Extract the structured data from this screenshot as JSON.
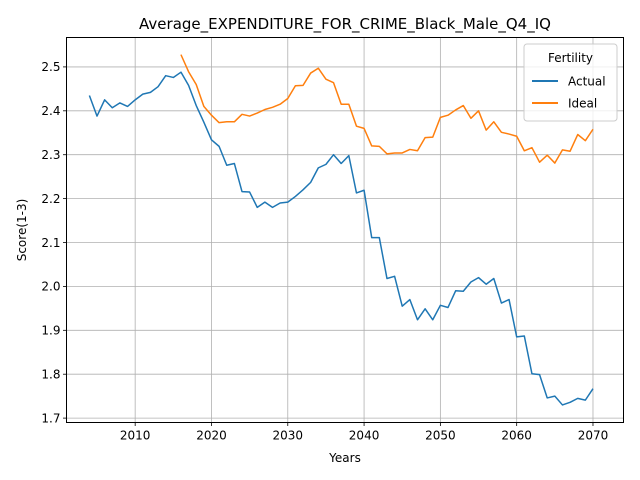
{
  "chart_data": {
    "type": "line",
    "title": "Average_EXPENDITURE_FOR_CRIME_Black_Male_Q4_IQ",
    "xlabel": "Years",
    "ylabel": "Score(1-3)",
    "xlim": [
      2001,
      2074
    ],
    "ylim": [
      1.69,
      2.567
    ],
    "xticks": [
      2010,
      2020,
      2030,
      2040,
      2050,
      2060,
      2070
    ],
    "yticks": [
      1.7,
      1.8,
      1.9,
      2.0,
      2.1,
      2.2,
      2.3,
      2.4,
      2.5
    ],
    "grid": true,
    "legend": {
      "title": "Fertility",
      "position": "top-right"
    },
    "series": [
      {
        "name": "Actual",
        "color": "#1f77b4",
        "x": [
          2004,
          2005,
          2006,
          2007,
          2008,
          2009,
          2010,
          2011,
          2012,
          2013,
          2014,
          2015,
          2016,
          2017,
          2018,
          2019,
          2020,
          2021,
          2022,
          2023,
          2024,
          2025,
          2026,
          2027,
          2028,
          2029,
          2030,
          2031,
          2032,
          2033,
          2034,
          2035,
          2036,
          2037,
          2038,
          2039,
          2040,
          2041,
          2042,
          2043,
          2044,
          2045,
          2046,
          2047,
          2048,
          2049,
          2050,
          2051,
          2052,
          2053,
          2054,
          2055,
          2056,
          2057,
          2058,
          2059,
          2060,
          2061,
          2062,
          2063,
          2064,
          2065,
          2066,
          2067,
          2068,
          2069,
          2070
        ],
        "values": [
          2.435,
          2.388,
          2.425,
          2.407,
          2.418,
          2.41,
          2.425,
          2.438,
          2.442,
          2.455,
          2.48,
          2.476,
          2.488,
          2.458,
          2.412,
          2.374,
          2.334,
          2.319,
          2.276,
          2.28,
          2.216,
          2.215,
          2.18,
          2.192,
          2.18,
          2.19,
          2.192,
          2.205,
          2.22,
          2.237,
          2.27,
          2.278,
          2.3,
          2.28,
          2.298,
          2.213,
          2.219,
          2.111,
          2.111,
          2.018,
          2.023,
          1.955,
          1.97,
          1.924,
          1.949,
          1.924,
          1.957,
          1.952,
          1.99,
          1.989,
          2.01,
          2.02,
          2.005,
          2.018,
          1.962,
          1.97,
          1.885,
          1.887,
          1.801,
          1.799,
          1.746,
          1.75,
          1.73,
          1.736,
          1.745,
          1.741,
          1.767
        ]
      },
      {
        "name": "Ideal",
        "color": "#ff7f0e",
        "x": [
          2016,
          2017,
          2018,
          2019,
          2020,
          2021,
          2022,
          2023,
          2024,
          2025,
          2026,
          2027,
          2028,
          2029,
          2030,
          2031,
          2032,
          2033,
          2034,
          2035,
          2036,
          2037,
          2038,
          2039,
          2040,
          2041,
          2042,
          2043,
          2044,
          2045,
          2046,
          2047,
          2048,
          2049,
          2050,
          2051,
          2052,
          2053,
          2054,
          2055,
          2056,
          2057,
          2058,
          2059,
          2060,
          2061,
          2062,
          2063,
          2064,
          2065,
          2066,
          2067,
          2068,
          2069,
          2070
        ],
        "values": [
          2.528,
          2.489,
          2.46,
          2.41,
          2.39,
          2.373,
          2.375,
          2.375,
          2.392,
          2.388,
          2.395,
          2.403,
          2.408,
          2.415,
          2.428,
          2.457,
          2.458,
          2.486,
          2.497,
          2.472,
          2.464,
          2.415,
          2.415,
          2.365,
          2.36,
          2.32,
          2.319,
          2.302,
          2.304,
          2.304,
          2.312,
          2.309,
          2.339,
          2.34,
          2.385,
          2.39,
          2.402,
          2.412,
          2.383,
          2.4,
          2.356,
          2.375,
          2.351,
          2.347,
          2.342,
          2.309,
          2.316,
          2.283,
          2.299,
          2.281,
          2.311,
          2.308,
          2.346,
          2.332,
          2.358
        ]
      }
    ]
  }
}
